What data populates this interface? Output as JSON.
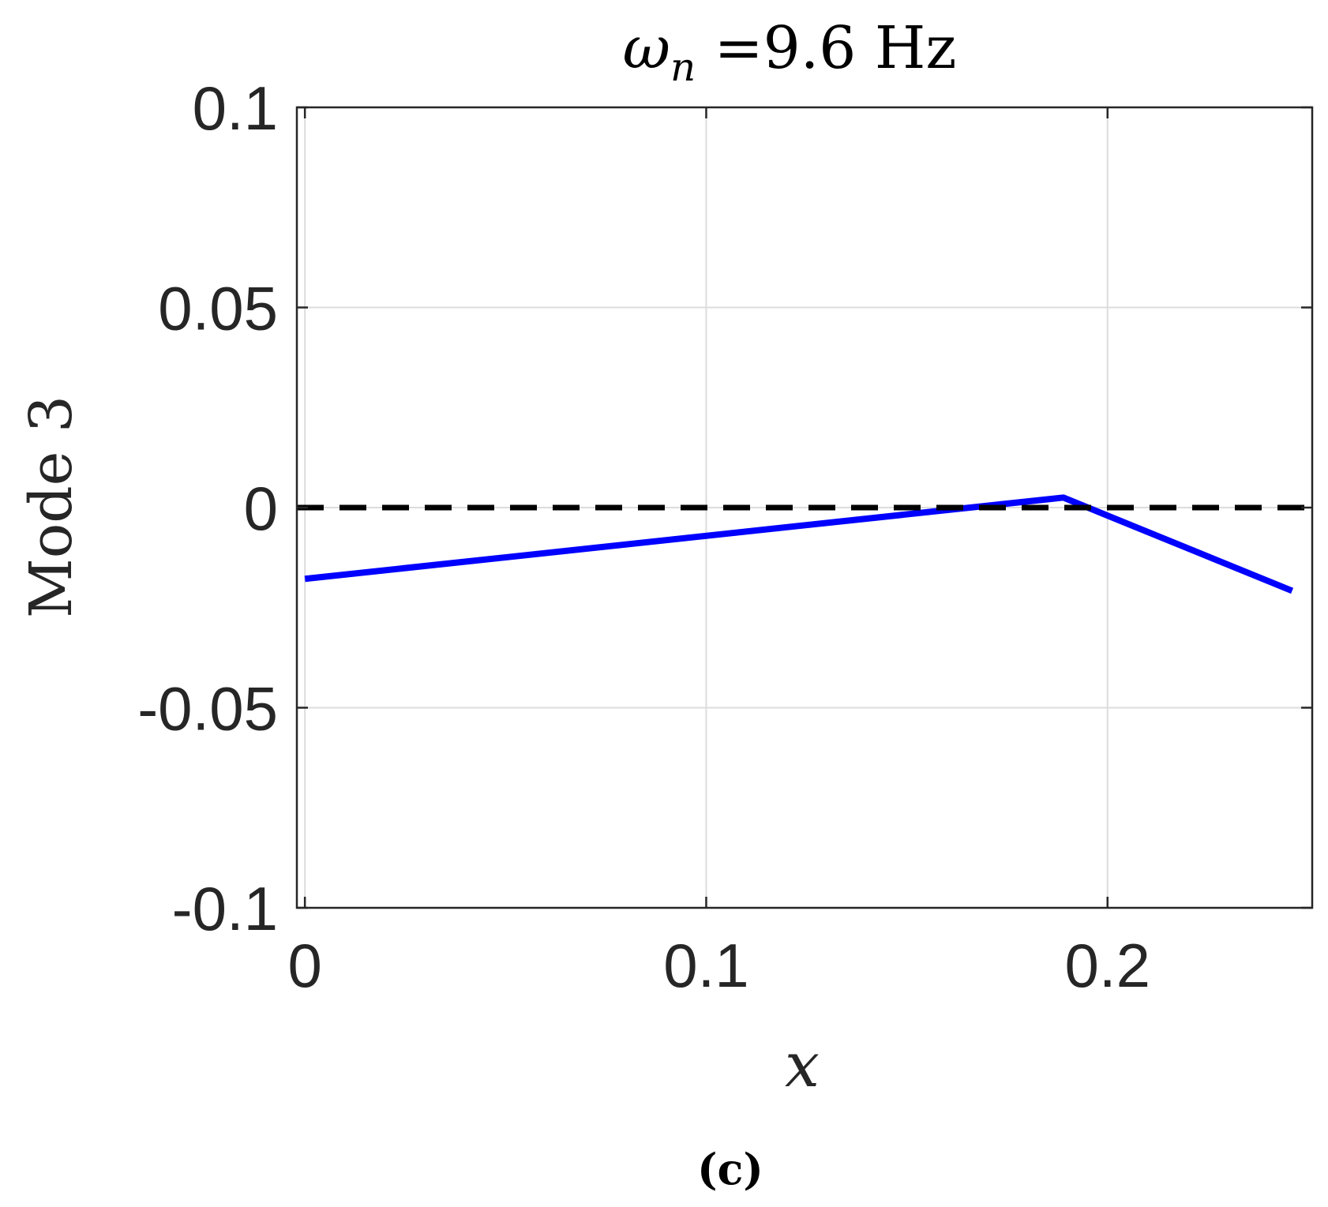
{
  "chart_data": {
    "type": "line",
    "title": "ω_n =9.6 Hz",
    "xlabel": "x",
    "ylabel": "Mode 3",
    "caption": "(c)",
    "xlim": [
      -0.002,
      0.251
    ],
    "ylim": [
      -0.1,
      0.1
    ],
    "xticks": [
      0,
      0.1,
      0.2
    ],
    "xtick_labels": [
      "0",
      "0.1",
      "0.2"
    ],
    "yticks": [
      -0.1,
      -0.05,
      0,
      0.05,
      0.1
    ],
    "ytick_labels": [
      "-0.1",
      "-0.05",
      "0",
      "0.05",
      "0.1"
    ],
    "grid": true,
    "series": [
      {
        "color": "#0000ff",
        "style": "solid",
        "x": [
          0,
          0.189,
          0.246
        ],
        "y": [
          -0.0178,
          0.0025,
          -0.0208
        ]
      },
      {
        "color": "#000000",
        "style": "dashed",
        "x": [
          -0.002,
          0.251
        ],
        "y": [
          0,
          0
        ]
      }
    ]
  }
}
